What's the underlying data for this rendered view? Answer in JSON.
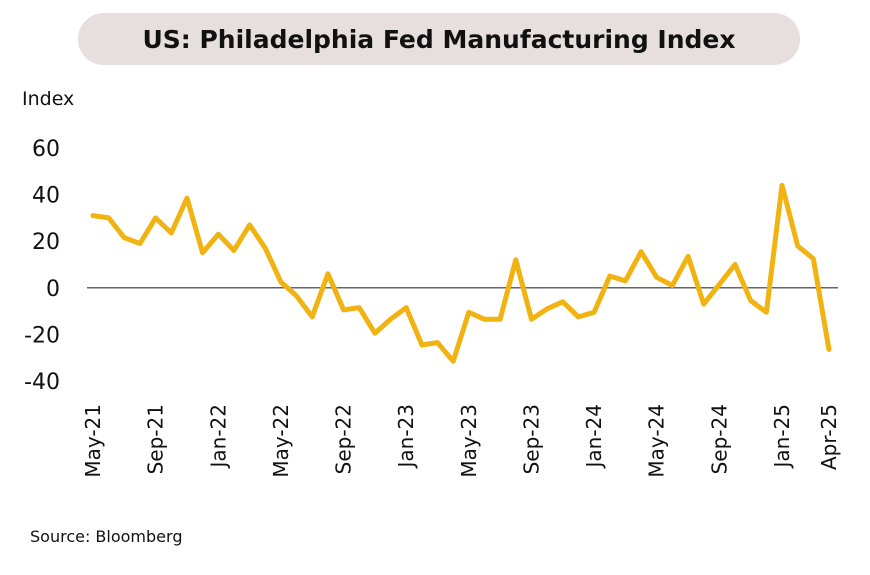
{
  "chart_data": {
    "type": "line",
    "title": "US: Philadelphia Fed Manufacturing Index",
    "ylabel": "Index",
    "source": "Source: Bloomberg",
    "ylim": [
      -40,
      60
    ],
    "yticks": [
      60,
      40,
      20,
      0,
      -20,
      -40
    ],
    "x_tick_labels": [
      "May-21",
      "Sep-21",
      "Jan-22",
      "May-22",
      "Sep-22",
      "Jan-23",
      "May-23",
      "Sep-23",
      "Jan-24",
      "May-24",
      "Sep-24",
      "Jan-25",
      "Apr-25"
    ],
    "x": [
      "May-21",
      "Jun-21",
      "Jul-21",
      "Aug-21",
      "Sep-21",
      "Oct-21",
      "Nov-21",
      "Dec-21",
      "Jan-22",
      "Feb-22",
      "Mar-22",
      "Apr-22",
      "May-22",
      "Jun-22",
      "Jul-22",
      "Aug-22",
      "Sep-22",
      "Oct-22",
      "Nov-22",
      "Dec-22",
      "Jan-23",
      "Feb-23",
      "Mar-23",
      "Apr-23",
      "May-23",
      "Jun-23",
      "Jul-23",
      "Aug-23",
      "Sep-23",
      "Oct-23",
      "Nov-23",
      "Dec-23",
      "Jan-24",
      "Feb-24",
      "Mar-24",
      "Apr-24",
      "May-24",
      "Jun-24",
      "Jul-24",
      "Aug-24",
      "Sep-24",
      "Oct-24",
      "Nov-24",
      "Dec-24",
      "Jan-25",
      "Feb-25",
      "Mar-25",
      "Apr-25"
    ],
    "series": [
      {
        "color": "#f1b311",
        "values": [
          31,
          30,
          21.5,
          19,
          30,
          23.5,
          38.5,
          15,
          23,
          16,
          27,
          17,
          2.5,
          -3.5,
          -12.5,
          6,
          -9.5,
          -8.5,
          -19.5,
          -13.5,
          -8.5,
          -24.5,
          -23.5,
          -31.5,
          -10.5,
          -13.5,
          -13.5,
          12,
          -13.5,
          -9,
          -6,
          -12.5,
          -10.5,
          5,
          3,
          15.5,
          4.5,
          1,
          13.5,
          -7,
          1.5,
          10,
          -5.5,
          -10.5,
          44,
          18,
          12.5,
          -26.5
        ]
      }
    ],
    "zero_line": true,
    "grid": false,
    "legend": "none"
  }
}
